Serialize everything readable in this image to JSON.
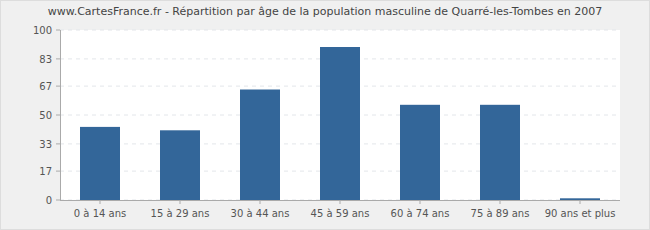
{
  "chart_data": {
    "type": "bar",
    "title": "www.CartesFrance.fr - Répartition par âge de la population masculine de Quarré-les-Tombes en 2007",
    "categories": [
      "0 à 14 ans",
      "15 à 29 ans",
      "30 à 44 ans",
      "45 à 59 ans",
      "60 à 74 ans",
      "75 à 89 ans",
      "90 ans et plus"
    ],
    "values": [
      43,
      41,
      65,
      90,
      56,
      56,
      1
    ],
    "color": "#336699",
    "ylim": [
      0,
      100
    ],
    "yticks": [
      0,
      17,
      33,
      50,
      67,
      83,
      100
    ],
    "grid": true
  }
}
